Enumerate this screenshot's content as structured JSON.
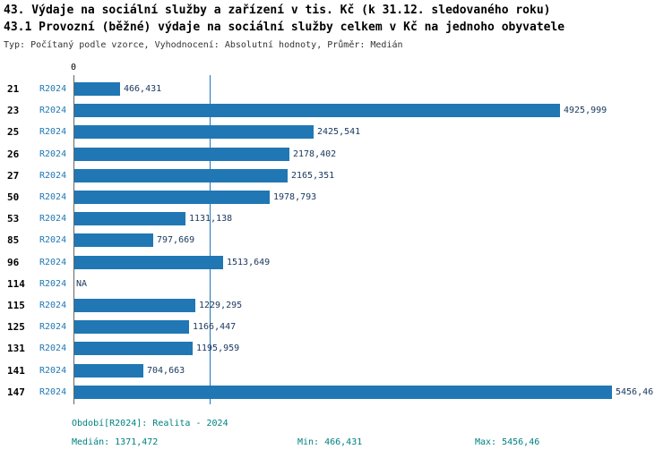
{
  "header": {
    "line1": "43. Výdaje na sociální služby a zařízení v tis. Kč (k 31.12. sledovaného roku)",
    "line2": "43.1 Provozní (běžné) výdaje na sociální služby celkem v Kč na jednoho obyvatele",
    "subtitle": "Typ: Počítaný podle vzorce, Vyhodnocení: Absolutní hodnoty, Průměr: Medián"
  },
  "axis": {
    "zero_label": "0"
  },
  "chart_data": {
    "type": "bar",
    "orientation": "horizontal",
    "categories": [
      "21",
      "23",
      "25",
      "26",
      "27",
      "50",
      "53",
      "85",
      "96",
      "114",
      "115",
      "125",
      "131",
      "141",
      "147"
    ],
    "series": [
      {
        "name": "R2024",
        "values": [
          466.431,
          4925.999,
          2425.541,
          2178.402,
          2165.351,
          1978.793,
          1131.138,
          797.669,
          1513.649,
          null,
          1229.295,
          1166.447,
          1195.959,
          704.663,
          5456.46
        ],
        "value_labels": [
          "466,431",
          "4925,999",
          "2425,541",
          "2178,402",
          "2165,351",
          "1978,793",
          "1131,138",
          "797,669",
          "1513,649",
          "NA",
          "1229,295",
          "1166,447",
          "1195,959",
          "704,663",
          "5456,46"
        ]
      }
    ],
    "na_label": "NA",
    "xlim": [
      0,
      5456.46
    ],
    "median": 1371.472,
    "median_label": "1371,472",
    "min": 466.431,
    "max": 5456.46,
    "bar_color": "#2077b4",
    "legend_position": "none",
    "grid": false
  },
  "footer": {
    "period": "Období[R2024]: Realita - 2024",
    "median": "Medián: 1371,472",
    "min": "Min: 466,431",
    "max": "Max: 5456,46"
  }
}
